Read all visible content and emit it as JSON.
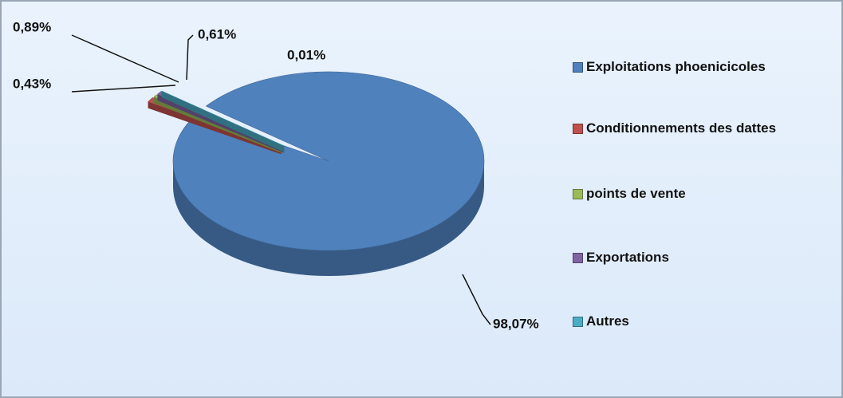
{
  "chart_data": {
    "type": "pie",
    "categories": [
      "Exploitations phoenicicoles",
      "Conditionnements des dattes",
      "points de vente",
      "Exportations",
      "Autres"
    ],
    "values": [
      98.07,
      0.89,
      0.43,
      0.61,
      0.01
    ],
    "value_labels": [
      "98,07%",
      "0,89%",
      "0,43%",
      "0,61%",
      "0,01%"
    ],
    "colors": [
      "#4f81bd",
      "#c0504d",
      "#9bbb59",
      "#8064a2",
      "#4bacc6"
    ],
    "legend": "right"
  }
}
